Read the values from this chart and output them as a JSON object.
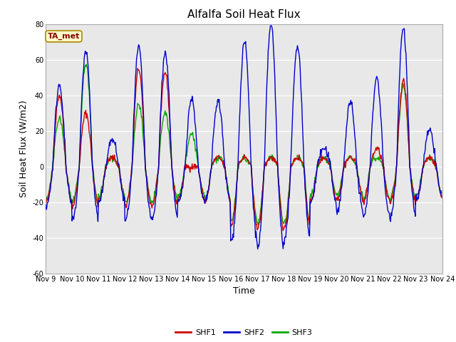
{
  "title": "Alfalfa Soil Heat Flux",
  "xlabel": "Time",
  "ylabel": "Soil Heat Flux (W/m2)",
  "ylim": [
    -60,
    80
  ],
  "yticks": [
    -60,
    -40,
    -20,
    0,
    20,
    40,
    60,
    80
  ],
  "start_day": 9,
  "end_day": 24,
  "n_days": 15,
  "shf1_color": "#cc0000",
  "shf2_color": "#0000cc",
  "shf3_color": "#00aa00",
  "fig_bg_color": "#ffffff",
  "plot_bg_color": "#e8e8e8",
  "grid_color": "#ffffff",
  "annotation_text": "TA_met",
  "annotation_box_color": "#ffffcc",
  "annotation_border_color": "#cc0000",
  "legend_labels": [
    "SHF1",
    "SHF2",
    "SHF3"
  ],
  "linewidth": 1.0,
  "title_fontsize": 11,
  "label_fontsize": 9,
  "tick_fontsize": 7
}
